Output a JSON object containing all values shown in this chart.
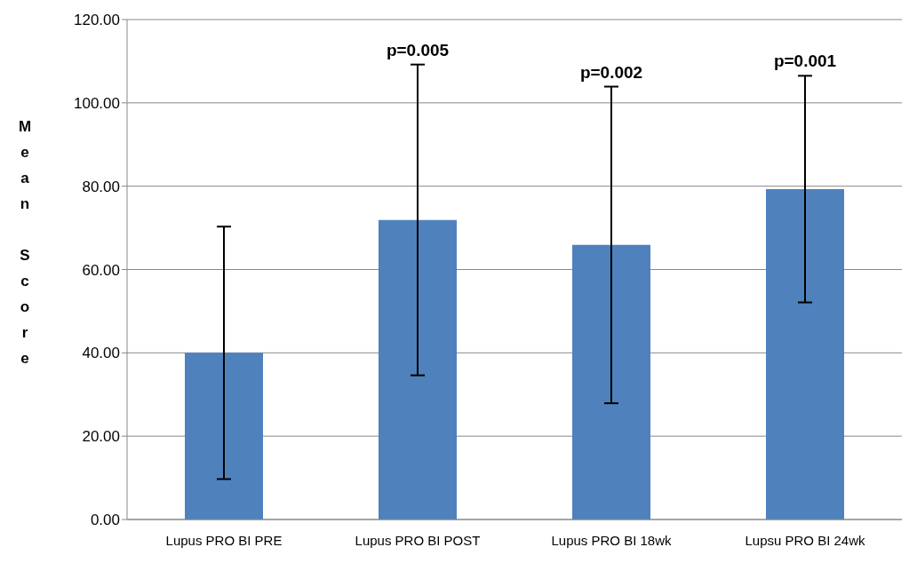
{
  "chart_data": {
    "type": "bar",
    "ylabel": "Mean Score",
    "categories": [
      "Lupus PRO BI PRE",
      "Lupus PRO BI POST",
      "Lupus PRO BI 18wk",
      "Lupsu PRO BI 24wk"
    ],
    "values": [
      40,
      71.9,
      65.9,
      79.3
    ],
    "errors": [
      30.3,
      37.3,
      38.0,
      27.2
    ],
    "color": "#4f81bd",
    "ylim": [
      0,
      120
    ],
    "yticks": [
      {
        "value": 0,
        "label": "0.00"
      },
      {
        "value": 20,
        "label": "20.00"
      },
      {
        "value": 40,
        "label": "40.00"
      },
      {
        "value": 60,
        "label": "60.00"
      },
      {
        "value": 80,
        "label": "80.00"
      },
      {
        "value": 100,
        "label": "100.00"
      },
      {
        "value": 120,
        "label": "120.00"
      }
    ],
    "grid": "y",
    "annotations": [
      {
        "text": "p=0.005",
        "x": "Lupus PRO BI POST",
        "y": 109.2
      },
      {
        "text": "p=0.002",
        "x": "Lupus PRO BI 18wk",
        "y": 103.9
      },
      {
        "text": "p=0.001",
        "x": "Lupsu PRO BI 24wk",
        "y": 106.5
      }
    ]
  }
}
